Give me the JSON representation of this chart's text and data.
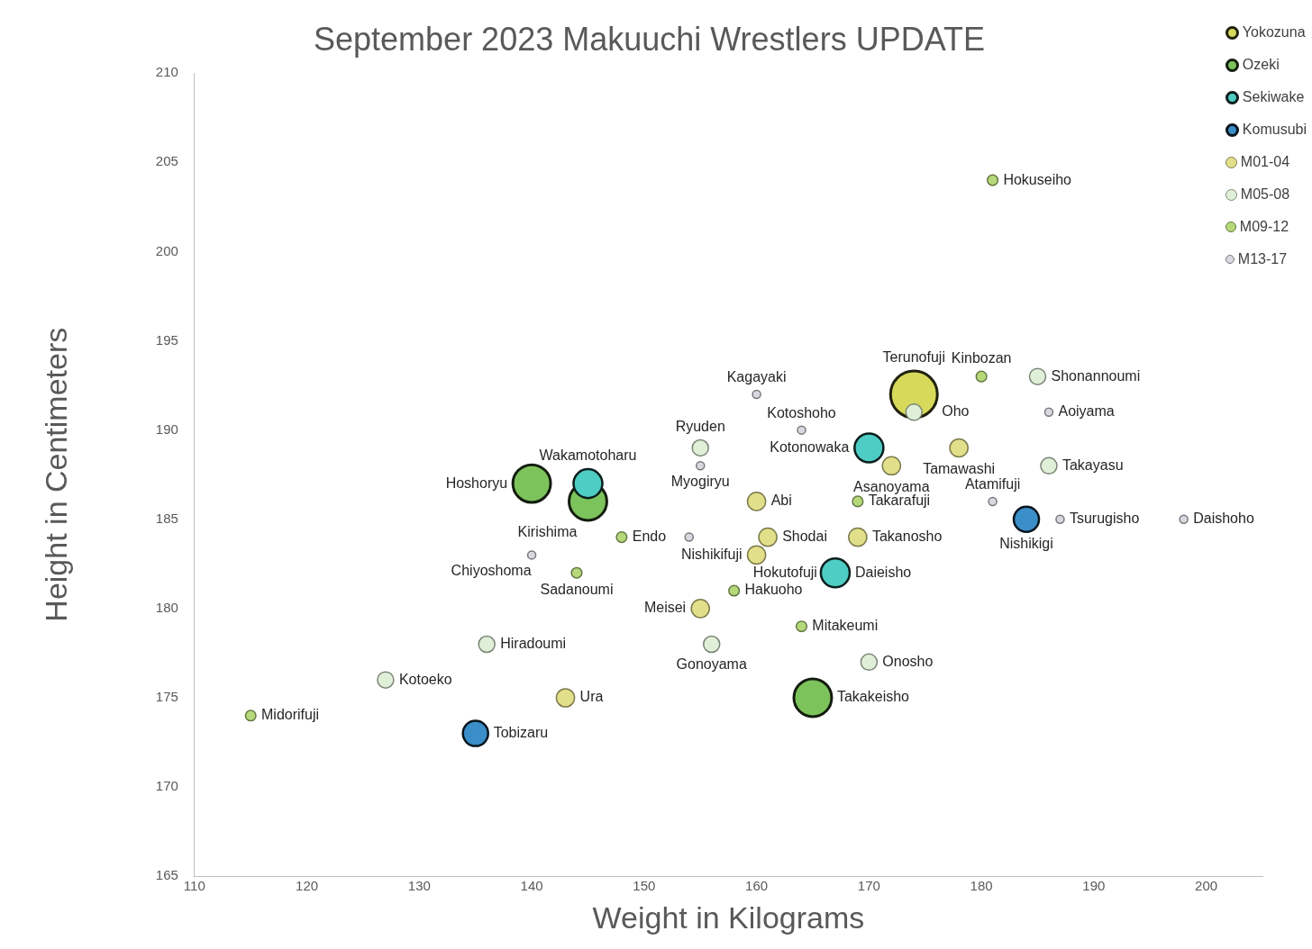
{
  "chart_data": {
    "type": "bubble",
    "title": "September 2023 Makuuchi Wrestlers UPDATE",
    "xlabel": "Weight in Kilograms",
    "ylabel": "Height in Centimeters",
    "xlim": [
      110,
      205
    ],
    "xticks": [
      110,
      120,
      130,
      140,
      150,
      160,
      170,
      180,
      190,
      200
    ],
    "ylim": [
      165,
      210
    ],
    "yticks": [
      165,
      170,
      175,
      180,
      185,
      190,
      195,
      200,
      205,
      210
    ],
    "grid": false,
    "legend": "top right",
    "marker": "circle",
    "series": [
      {
        "name": "Yokozuna",
        "color": "#d6d95a",
        "x": [
          174
        ],
        "values": [
          192
        ],
        "sizes": [
          1
        ],
        "value_labels": [
          "Terunofuji"
        ]
      },
      {
        "name": "Ozeki",
        "color": "#7dc35b",
        "x": [
          140,
          145,
          165
        ],
        "values": [
          187,
          186,
          175
        ],
        "sizes": [
          0.65,
          0.65,
          0.65
        ],
        "value_labels": [
          "Hoshoryu",
          "Kirishima",
          "Takakeisho"
        ]
      },
      {
        "name": "Sekiwake",
        "color": "#4ecdc4",
        "x": [
          145,
          170,
          167
        ],
        "values": [
          187,
          189,
          182
        ],
        "sizes": [
          0.38,
          0.38,
          0.38
        ],
        "value_labels": [
          "Wakamotoharu",
          "Kotonowaka",
          "Daieisho"
        ]
      },
      {
        "name": "Komusubi",
        "color": "#3b8fc8",
        "x": [
          184,
          135
        ],
        "values": [
          185,
          173
        ],
        "sizes": [
          0.29,
          0.29
        ],
        "value_labels": [
          "Nishikigi",
          "Tobizaru"
        ]
      },
      {
        "name": "M01-04",
        "color": "#e2df8a",
        "x": [
          160,
          161,
          160,
          169,
          172,
          178,
          155,
          143
        ],
        "values": [
          186,
          184,
          183,
          184,
          188,
          189,
          180,
          175
        ],
        "sizes": [
          0.15,
          0.15,
          0.15,
          0.15,
          0.15,
          0.15,
          0.15,
          0.15
        ],
        "value_labels": [
          "Abi",
          "Shodai",
          "Nishikifuji",
          "Takanosho",
          "Asanoyama",
          "Tamawashi",
          "Meisei",
          "Ura"
        ]
      },
      {
        "name": "M05-08",
        "color": "#e0f0d8",
        "x": [
          155,
          185,
          186,
          136,
          127,
          156,
          170,
          174
        ],
        "values": [
          189,
          193,
          188,
          178,
          176,
          178,
          177,
          191
        ],
        "sizes": [
          0.12,
          0.12,
          0.12,
          0.12,
          0.12,
          0.12,
          0.12,
          0.12
        ],
        "value_labels": [
          "Ryuden",
          "Shonannoumi",
          "Takayasu",
          "Hiradoumi",
          "Kotoeko",
          "Gonoyama",
          "Onosho",
          "Oho"
        ]
      },
      {
        "name": "M09-12",
        "color": "#b5d97a",
        "x": [
          181,
          180,
          169,
          148,
          144,
          158,
          164,
          115
        ],
        "values": [
          204,
          193,
          186,
          184,
          182,
          181,
          179,
          174
        ],
        "sizes": [
          0.05,
          0.05,
          0.05,
          0.05,
          0.05,
          0.05,
          0.05,
          0.05
        ],
        "value_labels": [
          "Hokuseiho",
          "Kinbozan",
          "Takarafuji",
          "Endo",
          "Sadanoumi",
          "Hakuoho",
          "Mitakeumi",
          "Midorifuji"
        ]
      },
      {
        "name": "M13-17",
        "color": "#d8d8e0",
        "x": [
          160,
          164,
          155,
          186,
          181,
          187,
          198,
          140,
          154
        ],
        "values": [
          192,
          190,
          188,
          191,
          186,
          185,
          185,
          183,
          184
        ],
        "sizes": [
          0.03,
          0.03,
          0.03,
          0.03,
          0.03,
          0.03,
          0.03,
          0.03,
          0.03
        ],
        "value_labels": [
          "Kagayaki",
          "Kotoshoho",
          "Myogiryu",
          "Aoiyama",
          "Atamifuji",
          "Tsurugisho",
          "Daishoho",
          "Chiyoshoma",
          null
        ]
      }
    ],
    "annotations": [
      {
        "text": "Hokutofuji",
        "x": 167,
        "y": 182
      }
    ]
  }
}
